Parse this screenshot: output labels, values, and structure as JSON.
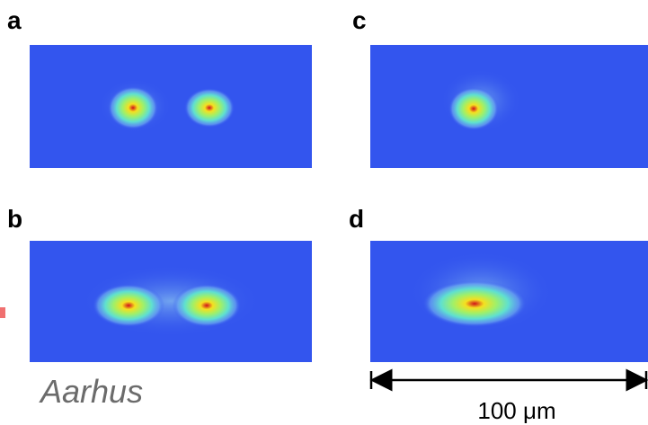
{
  "panels": [
    {
      "label": "a"
    },
    {
      "label": "b"
    },
    {
      "label": "c"
    },
    {
      "label": "d"
    }
  ],
  "caption": "Aarhus",
  "scale_bar": {
    "label": "100 μm"
  }
}
